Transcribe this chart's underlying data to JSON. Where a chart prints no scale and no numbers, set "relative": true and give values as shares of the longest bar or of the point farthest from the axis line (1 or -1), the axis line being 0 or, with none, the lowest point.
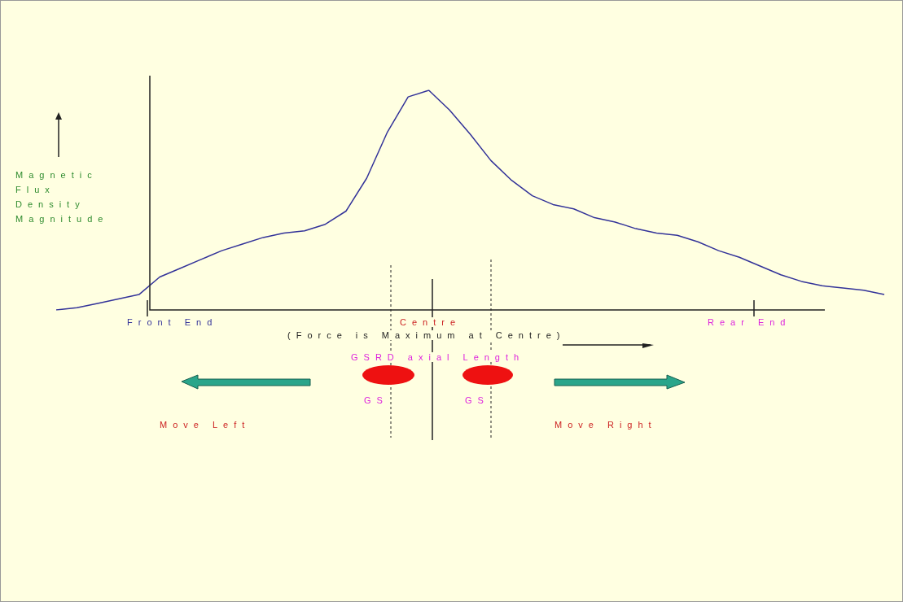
{
  "chart_data": {
    "type": "line",
    "relative": true,
    "ylabel": "Magnetic Flux Density Magnitude",
    "categories": [
      null,
      null,
      null,
      null,
      null,
      null,
      null,
      null,
      null,
      null,
      null,
      null,
      null,
      null,
      null,
      null,
      null,
      null,
      null,
      null,
      null,
      null,
      null,
      null,
      null,
      null,
      null,
      null,
      null,
      null,
      null,
      null,
      null,
      null,
      null,
      null,
      null,
      null,
      null,
      null,
      null
    ],
    "series": [
      {
        "color": "#333399",
        "values": [
          0,
          0.01,
          0.03,
          0.05,
          0.07,
          0.15,
          0.19,
          0.23,
          0.27,
          0.3,
          0.33,
          0.35,
          0.36,
          0.39,
          0.45,
          0.6,
          0.81,
          0.97,
          1,
          0.91,
          0.8,
          0.68,
          0.59,
          0.52,
          0.48,
          0.46,
          0.42,
          0.4,
          0.37,
          0.35,
          0.34,
          0.31,
          0.27,
          0.24,
          0.2,
          0.16,
          0.13,
          0.11,
          0.1,
          0.09,
          0.07
        ]
      }
    ],
    "annotations": [
      "Front End",
      "Centre",
      "(Force is Maximum at Centre)",
      "Rear End",
      "GSRD axial Length",
      "GS",
      "GS",
      "Move Left",
      "Move Right"
    ]
  }
}
